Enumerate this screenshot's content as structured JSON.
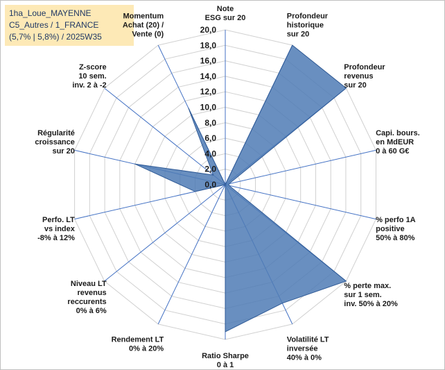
{
  "info_box": {
    "line1": "1ha_Loue_MAYENNE",
    "line2": "C5_Autres / 1_FRANCE",
    "line3": "(5,7% | 5,8%) / 2025W35"
  },
  "chart_data": {
    "type": "radar",
    "rmin": 0,
    "rmax": 20,
    "tick_step": 2,
    "grid": true,
    "colors": {
      "fill": "#4f7bb5",
      "stroke": "#2f5a96",
      "grid": "#d0d0d0",
      "spoke": "#4472c4"
    },
    "tick_labels": [
      "0,0",
      "2,0",
      "4,0",
      "6,0",
      "8,0",
      "10,0",
      "12,0",
      "14,0",
      "16,0",
      "18,0",
      "20,0"
    ],
    "axes": [
      {
        "label": [
          "Note",
          "ESG sur 20"
        ],
        "value": 0
      },
      {
        "label": [
          "Profondeur",
          "historique",
          "sur 20"
        ],
        "value": 20
      },
      {
        "label": [
          "Profondeur",
          "revenus",
          "sur 20"
        ],
        "value": 20
      },
      {
        "label": [
          "Capi. bours.",
          "en MdEUR",
          "0 à 60 G€"
        ],
        "value": 0.5
      },
      {
        "label": [
          "% perfo 1A",
          "positive",
          "50% à 80%"
        ],
        "value": 0.5
      },
      {
        "label": [
          "% perte max.",
          "sur 1 sem.",
          "inv. 50% à 20%"
        ],
        "value": 20
      },
      {
        "label": [
          "Volatilité LT",
          "inversée",
          "40% à 0%"
        ],
        "value": 17
      },
      {
        "label": [
          "Ratio Sharpe",
          "0 à 1"
        ],
        "value": 19
      },
      {
        "label": [
          "Rendement LT",
          "0% à 20%"
        ],
        "value": 0
      },
      {
        "label": [
          "Niveau LT",
          "revenus",
          "reccurents",
          "0% à 6%"
        ],
        "value": 0
      },
      {
        "label": [
          "Perfo. LT",
          "vs index",
          "-8% à 12%"
        ],
        "value": 4
      },
      {
        "label": [
          "Régularité",
          "croissance",
          "sur 20"
        ],
        "value": 12
      },
      {
        "label": [
          "Z-score",
          "10 sem.",
          "inv. 2 à -2"
        ],
        "value": 2
      },
      {
        "label": [
          "Momentum",
          "Achat (20) /",
          "Vente (0)"
        ],
        "value": 11
      }
    ]
  }
}
